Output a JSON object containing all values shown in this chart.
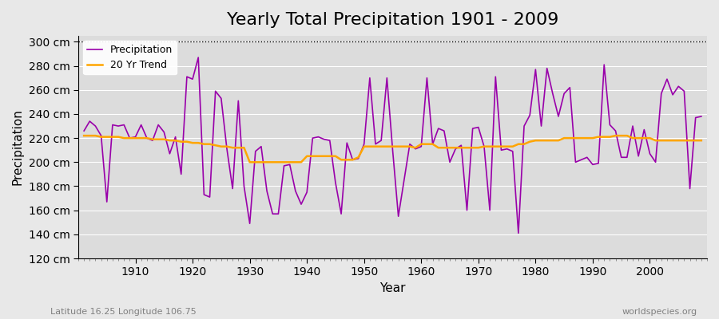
{
  "title": "Yearly Total Precipitation 1901 - 2009",
  "xlabel": "Year",
  "ylabel": "Precipitation",
  "lat_lon_label": "Latitude 16.25 Longitude 106.75",
  "watermark": "worldspecies.org",
  "years": [
    1901,
    1902,
    1903,
    1904,
    1905,
    1906,
    1907,
    1908,
    1909,
    1910,
    1911,
    1912,
    1913,
    1914,
    1915,
    1916,
    1917,
    1918,
    1919,
    1920,
    1921,
    1922,
    1923,
    1924,
    1925,
    1926,
    1927,
    1928,
    1929,
    1930,
    1931,
    1932,
    1933,
    1934,
    1935,
    1936,
    1937,
    1938,
    1939,
    1940,
    1941,
    1942,
    1943,
    1944,
    1945,
    1946,
    1947,
    1948,
    1949,
    1950,
    1951,
    1952,
    1953,
    1954,
    1955,
    1956,
    1957,
    1958,
    1959,
    1960,
    1961,
    1962,
    1963,
    1964,
    1965,
    1966,
    1967,
    1968,
    1969,
    1970,
    1971,
    1972,
    1973,
    1974,
    1975,
    1976,
    1977,
    1978,
    1979,
    1980,
    1981,
    1982,
    1983,
    1984,
    1985,
    1986,
    1987,
    1988,
    1989,
    1990,
    1991,
    1992,
    1993,
    1994,
    1995,
    1996,
    1997,
    1998,
    1999,
    2000,
    2001,
    2002,
    2003,
    2004,
    2005,
    2006,
    2007,
    2008,
    2009
  ],
  "precipitation": [
    226,
    234,
    230,
    222,
    167,
    231,
    230,
    231,
    220,
    221,
    231,
    220,
    218,
    231,
    225,
    207,
    221,
    190,
    271,
    269,
    287,
    173,
    171,
    259,
    253,
    211,
    178,
    251,
    180,
    149,
    209,
    213,
    176,
    157,
    157,
    197,
    198,
    176,
    165,
    175,
    220,
    221,
    219,
    218,
    183,
    157,
    216,
    202,
    203,
    215,
    270,
    215,
    218,
    270,
    210,
    155,
    185,
    215,
    211,
    213,
    270,
    215,
    228,
    226,
    200,
    211,
    214,
    160,
    228,
    229,
    213,
    160,
    271,
    210,
    211,
    209,
    141,
    230,
    239,
    277,
    230,
    278,
    257,
    238,
    257,
    262,
    200,
    202,
    204,
    198,
    199,
    281,
    231,
    226,
    204,
    204,
    230,
    205,
    227,
    207,
    200,
    257,
    269,
    256,
    263,
    259,
    178,
    237,
    238
  ],
  "trend": [
    222,
    222,
    222,
    221,
    221,
    221,
    221,
    220,
    220,
    220,
    220,
    220,
    219,
    219,
    219,
    218,
    218,
    217,
    217,
    216,
    216,
    215,
    215,
    214,
    213,
    213,
    212,
    212,
    212,
    200,
    200,
    200,
    200,
    200,
    200,
    200,
    200,
    200,
    200,
    205,
    205,
    205,
    205,
    205,
    205,
    202,
    202,
    202,
    204,
    213,
    213,
    213,
    213,
    213,
    213,
    213,
    213,
    213,
    212,
    215,
    215,
    215,
    212,
    212,
    212,
    212,
    212,
    212,
    212,
    212,
    213,
    213,
    213,
    213,
    213,
    213,
    215,
    215,
    217,
    218,
    218,
    218,
    218,
    218,
    220,
    220,
    220,
    220,
    220,
    220,
    221,
    221,
    221,
    222,
    222,
    222,
    220,
    220,
    220,
    220,
    218,
    218,
    218,
    218,
    218,
    218,
    218,
    218,
    218
  ],
  "ylim": [
    120,
    305
  ],
  "yticks": [
    120,
    140,
    160,
    180,
    200,
    220,
    240,
    260,
    280,
    300
  ],
  "ytick_labels": [
    "120 cm",
    "140 cm",
    "160 cm",
    "180 cm",
    "200 cm",
    "220 cm",
    "240 cm",
    "260 cm",
    "280 cm",
    "300 cm"
  ],
  "xlim": [
    1900,
    2010
  ],
  "xticks": [
    1910,
    1920,
    1930,
    1940,
    1950,
    1960,
    1970,
    1980,
    1990,
    2000
  ],
  "precipitation_color": "#9900AA",
  "trend_color": "#FFA500",
  "bg_color": "#E8E8E8",
  "plot_bg_color": "#DCDCDC",
  "grid_color": "#FFFFFF",
  "dotted_line_y": 300,
  "title_fontsize": 16,
  "axis_label_fontsize": 11,
  "tick_fontsize": 10,
  "legend_entries": [
    "Precipitation",
    "20 Yr Trend"
  ]
}
